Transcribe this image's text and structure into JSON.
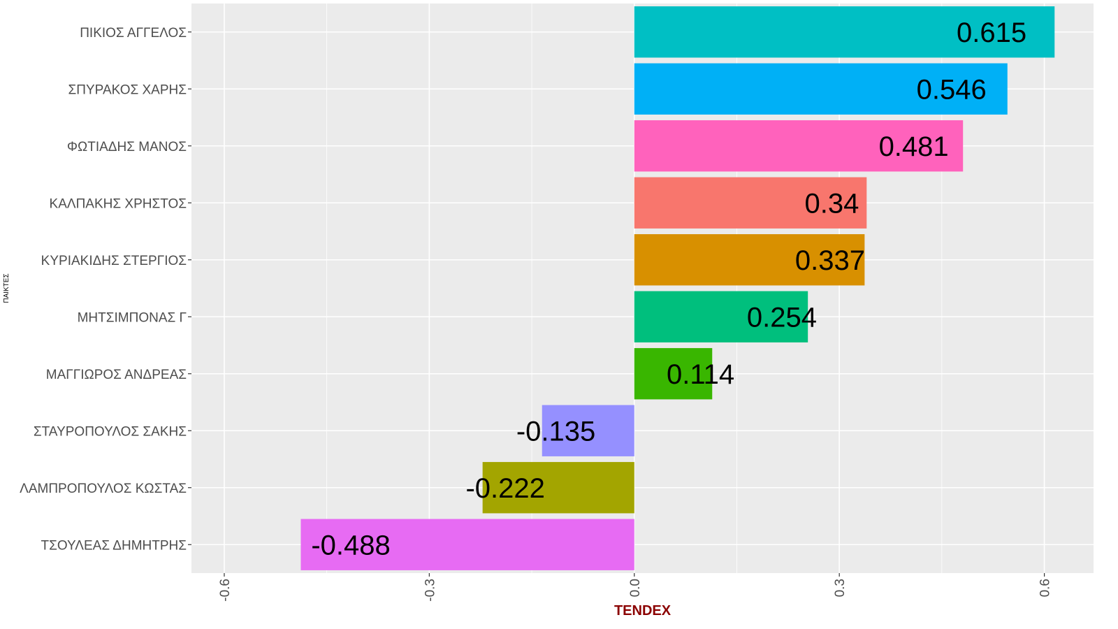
{
  "chart_data": {
    "type": "bar",
    "orientation": "horizontal",
    "xlabel": "TENDEX",
    "ylabel": "ΠΑΙΚΤΕΣ",
    "xlim": [
      -0.648,
      0.672
    ],
    "x_ticks": [
      -0.6,
      -0.3,
      0.0,
      0.3,
      0.6
    ],
    "x_tick_labels": [
      "-0.6",
      "-0.3",
      "0.0",
      "0.3",
      "0.6"
    ],
    "grid": true,
    "categories": [
      "ΠΙΚΙΟΣ ΑΓΓΕΛΟΣ",
      "ΣΠΥΡΑΚΟΣ ΧΑΡΗΣ",
      "ΦΩΤΙΑΔΗΣ ΜΑΝΟΣ",
      "ΚΑΛΠΑΚΗΣ ΧΡΗΣΤΟΣ",
      "ΚΥΡΙΑΚΙΔΗΣ ΣΤΕΡΓΙΟΣ",
      "ΜΗΤΣΙΜΠΟΝΑΣ Γ",
      "ΜΑΓΓΙΩΡΟΣ ΑΝΔΡΕΑΣ",
      "ΣΤΑΥΡΟΠΟΥΛΟΣ ΣΑΚΗΣ",
      "ΛΑΜΠΡΟΠΟΥΛΟΣ ΚΩΣΤΑΣ",
      "ΤΣΟΥΛΕΑΣ ΔΗΜΗΤΡΗΣ"
    ],
    "values": [
      0.615,
      0.546,
      0.481,
      0.34,
      0.337,
      0.254,
      0.114,
      -0.135,
      -0.222,
      -0.488
    ],
    "value_labels": [
      "0.615",
      "0.546",
      "0.481",
      "0.34",
      "0.337",
      "0.254",
      "0.114",
      "-0.135",
      "-0.222",
      "-0.488"
    ],
    "colors": [
      "#00BFC4",
      "#00B0F6",
      "#FF62BC",
      "#F8766D",
      "#D89000",
      "#00BF7D",
      "#39B600",
      "#9590FF",
      "#A3A500",
      "#E76BF3"
    ],
    "panel_background": "#EBEBEB",
    "grid_color": "#FFFFFF",
    "xlabel_color": "#8B0000"
  }
}
